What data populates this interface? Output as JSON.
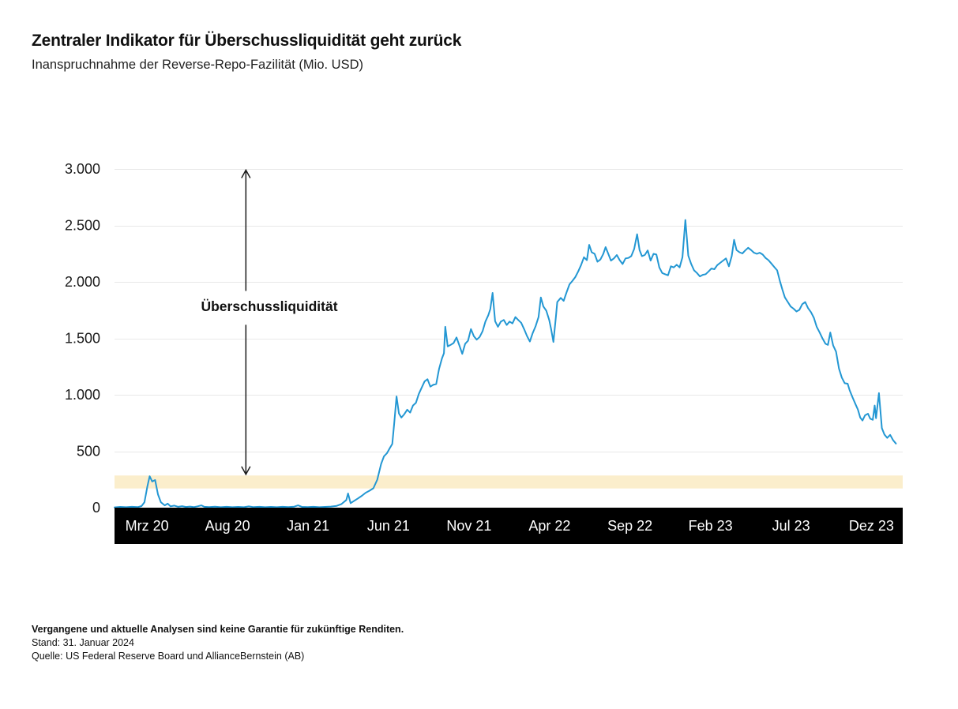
{
  "header": {
    "title": "Zentraler Indikator für Überschussliquidität geht zurück",
    "subtitle": "Inanspruchnahme der Reverse-Repo-Fazilität (Mio. USD)"
  },
  "footer": {
    "disclaimer": "Vergangene und aktuelle Analysen sind keine Garantie für zukünftige Renditen.",
    "as_of": "Stand: 31. Januar 2024",
    "source": "Quelle: US Federal Reserve Board und AllianceBernstein (AB)"
  },
  "colors": {
    "line": "#2397d3",
    "band": "#FBEECC",
    "grid": "#e8e8e8",
    "axis_band": "#000000",
    "text": "#1a1a1a",
    "arrow": "#1a1a1a"
  },
  "chart_data": {
    "type": "line",
    "title": "Zentraler Indikator für Überschussliquidität geht zurück",
    "subtitle": "Inanspruchnahme der Reverse-Repo-Fazilität (Mio. USD)",
    "xlabel": "",
    "ylabel": "",
    "ylim": [
      0,
      3000
    ],
    "xlim": [
      2020.04,
      2024.12
    ],
    "grid": true,
    "legend": "none",
    "yticks": [
      {
        "value": 0,
        "label": "0"
      },
      {
        "value": 500,
        "label": "500"
      },
      {
        "value": 1000,
        "label": "1.000"
      },
      {
        "value": 1500,
        "label": "1.500"
      },
      {
        "value": 2000,
        "label": "2.000"
      },
      {
        "value": 2500,
        "label": "2.500"
      },
      {
        "value": 3000,
        "label": "3.000"
      }
    ],
    "xticks": [
      {
        "t": 2020.208,
        "label": "Mrz 20"
      },
      {
        "t": 2020.625,
        "label": "Aug 20"
      },
      {
        "t": 2021.042,
        "label": "Jan 21"
      },
      {
        "t": 2021.458,
        "label": "Jun 21"
      },
      {
        "t": 2021.875,
        "label": "Nov 21"
      },
      {
        "t": 2022.292,
        "label": "Apr 22"
      },
      {
        "t": 2022.708,
        "label": "Sep 22"
      },
      {
        "t": 2023.125,
        "label": "Feb 23"
      },
      {
        "t": 2023.542,
        "label": "Jul 23"
      },
      {
        "t": 2023.958,
        "label": "Dez 23"
      }
    ],
    "band": {
      "value_range": [
        170,
        285
      ],
      "color": "#FBEECC"
    },
    "annotation": {
      "label": "Überschussliquidität",
      "arrow_t": 2020.72,
      "arrow_value_range": [
        295,
        2990
      ],
      "label_gap_values": [
        1620,
        1920
      ]
    },
    "series": [
      {
        "name": "Inanspruchnahme der Reverse-Repo-Fazilität (Mio. USD)",
        "color": "#2397d3",
        "points": [
          [
            2020.04,
            3
          ],
          [
            2020.07,
            7
          ],
          [
            2020.1,
            4
          ],
          [
            2020.13,
            8
          ],
          [
            2020.16,
            5
          ],
          [
            2020.18,
            14
          ],
          [
            2020.195,
            48
          ],
          [
            2020.21,
            188
          ],
          [
            2020.222,
            278
          ],
          [
            2020.235,
            232
          ],
          [
            2020.25,
            245
          ],
          [
            2020.265,
            118
          ],
          [
            2020.28,
            48
          ],
          [
            2020.3,
            20
          ],
          [
            2020.315,
            36
          ],
          [
            2020.33,
            12
          ],
          [
            2020.35,
            18
          ],
          [
            2020.37,
            8
          ],
          [
            2020.39,
            13
          ],
          [
            2020.41,
            6
          ],
          [
            2020.43,
            10
          ],
          [
            2020.45,
            5
          ],
          [
            2020.47,
            12
          ],
          [
            2020.49,
            20
          ],
          [
            2020.505,
            8
          ],
          [
            2020.53,
            5
          ],
          [
            2020.56,
            9
          ],
          [
            2020.59,
            4
          ],
          [
            2020.62,
            8
          ],
          [
            2020.65,
            4
          ],
          [
            2020.68,
            7
          ],
          [
            2020.71,
            4
          ],
          [
            2020.735,
            12
          ],
          [
            2020.76,
            5
          ],
          [
            2020.79,
            8
          ],
          [
            2020.82,
            4
          ],
          [
            2020.85,
            7
          ],
          [
            2020.88,
            4
          ],
          [
            2020.91,
            8
          ],
          [
            2020.94,
            5
          ],
          [
            2020.97,
            9
          ],
          [
            2020.99,
            20
          ],
          [
            2021.01,
            7
          ],
          [
            2021.04,
            5
          ],
          [
            2021.07,
            8
          ],
          [
            2021.1,
            4
          ],
          [
            2021.13,
            7
          ],
          [
            2021.16,
            10
          ],
          [
            2021.19,
            16
          ],
          [
            2021.215,
            32
          ],
          [
            2021.24,
            68
          ],
          [
            2021.249,
            126
          ],
          [
            2021.262,
            40
          ],
          [
            2021.28,
            60
          ],
          [
            2021.3,
            82
          ],
          [
            2021.32,
            105
          ],
          [
            2021.34,
            132
          ],
          [
            2021.36,
            150
          ],
          [
            2021.38,
            172
          ],
          [
            2021.4,
            248
          ],
          [
            2021.42,
            388
          ],
          [
            2021.435,
            455
          ],
          [
            2021.45,
            482
          ],
          [
            2021.465,
            528
          ],
          [
            2021.478,
            565
          ],
          [
            2021.488,
            752
          ],
          [
            2021.5,
            985
          ],
          [
            2021.512,
            835
          ],
          [
            2021.525,
            798
          ],
          [
            2021.54,
            828
          ],
          [
            2021.555,
            868
          ],
          [
            2021.57,
            842
          ],
          [
            2021.585,
            905
          ],
          [
            2021.6,
            928
          ],
          [
            2021.615,
            1008
          ],
          [
            2021.63,
            1062
          ],
          [
            2021.645,
            1118
          ],
          [
            2021.66,
            1138
          ],
          [
            2021.675,
            1072
          ],
          [
            2021.69,
            1088
          ],
          [
            2021.705,
            1095
          ],
          [
            2021.72,
            1228
          ],
          [
            2021.735,
            1322
          ],
          [
            2021.745,
            1368
          ],
          [
            2021.752,
            1602
          ],
          [
            2021.765,
            1428
          ],
          [
            2021.78,
            1442
          ],
          [
            2021.795,
            1458
          ],
          [
            2021.81,
            1508
          ],
          [
            2021.825,
            1438
          ],
          [
            2021.84,
            1362
          ],
          [
            2021.855,
            1452
          ],
          [
            2021.87,
            1478
          ],
          [
            2021.885,
            1582
          ],
          [
            2021.9,
            1518
          ],
          [
            2021.915,
            1488
          ],
          [
            2021.93,
            1512
          ],
          [
            2021.945,
            1562
          ],
          [
            2021.96,
            1648
          ],
          [
            2021.975,
            1705
          ],
          [
            2021.985,
            1758
          ],
          [
            2021.997,
            1902
          ],
          [
            2022.01,
            1652
          ],
          [
            2022.025,
            1602
          ],
          [
            2022.04,
            1648
          ],
          [
            2022.055,
            1662
          ],
          [
            2022.07,
            1618
          ],
          [
            2022.085,
            1648
          ],
          [
            2022.1,
            1632
          ],
          [
            2022.115,
            1688
          ],
          [
            2022.13,
            1662
          ],
          [
            2022.145,
            1638
          ],
          [
            2022.16,
            1582
          ],
          [
            2022.175,
            1522
          ],
          [
            2022.19,
            1472
          ],
          [
            2022.205,
            1548
          ],
          [
            2022.22,
            1608
          ],
          [
            2022.235,
            1688
          ],
          [
            2022.247,
            1862
          ],
          [
            2022.26,
            1782
          ],
          [
            2022.275,
            1745
          ],
          [
            2022.29,
            1662
          ],
          [
            2022.3,
            1582
          ],
          [
            2022.312,
            1468
          ],
          [
            2022.325,
            1692
          ],
          [
            2022.332,
            1822
          ],
          [
            2022.35,
            1858
          ],
          [
            2022.365,
            1832
          ],
          [
            2022.38,
            1908
          ],
          [
            2022.395,
            1978
          ],
          [
            2022.41,
            2008
          ],
          [
            2022.425,
            2042
          ],
          [
            2022.44,
            2092
          ],
          [
            2022.455,
            2148
          ],
          [
            2022.47,
            2218
          ],
          [
            2022.485,
            2192
          ],
          [
            2022.497,
            2328
          ],
          [
            2022.51,
            2262
          ],
          [
            2022.525,
            2248
          ],
          [
            2022.54,
            2178
          ],
          [
            2022.555,
            2198
          ],
          [
            2022.57,
            2248
          ],
          [
            2022.582,
            2308
          ],
          [
            2022.595,
            2252
          ],
          [
            2022.61,
            2188
          ],
          [
            2022.625,
            2208
          ],
          [
            2022.64,
            2238
          ],
          [
            2022.655,
            2192
          ],
          [
            2022.67,
            2158
          ],
          [
            2022.685,
            2208
          ],
          [
            2022.7,
            2212
          ],
          [
            2022.715,
            2228
          ],
          [
            2022.73,
            2292
          ],
          [
            2022.745,
            2422
          ],
          [
            2022.758,
            2282
          ],
          [
            2022.77,
            2228
          ],
          [
            2022.785,
            2238
          ],
          [
            2022.8,
            2278
          ],
          [
            2022.815,
            2188
          ],
          [
            2022.83,
            2248
          ],
          [
            2022.845,
            2242
          ],
          [
            2022.86,
            2128
          ],
          [
            2022.875,
            2078
          ],
          [
            2022.89,
            2068
          ],
          [
            2022.905,
            2058
          ],
          [
            2022.92,
            2138
          ],
          [
            2022.935,
            2128
          ],
          [
            2022.95,
            2152
          ],
          [
            2022.965,
            2128
          ],
          [
            2022.98,
            2218
          ],
          [
            2022.995,
            2548
          ],
          [
            2023.01,
            2232
          ],
          [
            2023.025,
            2158
          ],
          [
            2023.04,
            2102
          ],
          [
            2023.055,
            2078
          ],
          [
            2023.07,
            2048
          ],
          [
            2023.085,
            2062
          ],
          [
            2023.1,
            2068
          ],
          [
            2023.115,
            2092
          ],
          [
            2023.13,
            2118
          ],
          [
            2023.145,
            2112
          ],
          [
            2023.16,
            2148
          ],
          [
            2023.175,
            2168
          ],
          [
            2023.19,
            2188
          ],
          [
            2023.205,
            2208
          ],
          [
            2023.22,
            2138
          ],
          [
            2023.235,
            2228
          ],
          [
            2023.247,
            2372
          ],
          [
            2023.26,
            2282
          ],
          [
            2023.275,
            2262
          ],
          [
            2023.29,
            2252
          ],
          [
            2023.305,
            2278
          ],
          [
            2023.32,
            2302
          ],
          [
            2023.335,
            2282
          ],
          [
            2023.35,
            2258
          ],
          [
            2023.365,
            2248
          ],
          [
            2023.38,
            2258
          ],
          [
            2023.395,
            2242
          ],
          [
            2023.41,
            2212
          ],
          [
            2023.425,
            2192
          ],
          [
            2023.44,
            2162
          ],
          [
            2023.455,
            2132
          ],
          [
            2023.47,
            2102
          ],
          [
            2023.485,
            2002
          ],
          [
            2023.497,
            1932
          ],
          [
            2023.51,
            1862
          ],
          [
            2023.525,
            1822
          ],
          [
            2023.54,
            1782
          ],
          [
            2023.555,
            1762
          ],
          [
            2023.57,
            1738
          ],
          [
            2023.585,
            1752
          ],
          [
            2023.6,
            1802
          ],
          [
            2023.615,
            1822
          ],
          [
            2023.63,
            1768
          ],
          [
            2023.645,
            1732
          ],
          [
            2023.66,
            1682
          ],
          [
            2023.675,
            1602
          ],
          [
            2023.69,
            1552
          ],
          [
            2023.705,
            1498
          ],
          [
            2023.72,
            1452
          ],
          [
            2023.733,
            1442
          ],
          [
            2023.745,
            1552
          ],
          [
            2023.76,
            1438
          ],
          [
            2023.775,
            1382
          ],
          [
            2023.79,
            1232
          ],
          [
            2023.805,
            1152
          ],
          [
            2023.82,
            1102
          ],
          [
            2023.835,
            1098
          ],
          [
            2023.845,
            1042
          ],
          [
            2023.86,
            978
          ],
          [
            2023.875,
            918
          ],
          [
            2023.888,
            868
          ],
          [
            2023.9,
            798
          ],
          [
            2023.912,
            772
          ],
          [
            2023.925,
            818
          ],
          [
            2023.94,
            832
          ],
          [
            2023.952,
            788
          ],
          [
            2023.965,
            778
          ],
          [
            2023.975,
            905
          ],
          [
            2023.982,
            792
          ],
          [
            2023.997,
            1015
          ],
          [
            2024.012,
            705
          ],
          [
            2024.025,
            648
          ],
          [
            2024.04,
            618
          ],
          [
            2024.055,
            645
          ],
          [
            2024.07,
            598
          ],
          [
            2024.085,
            568
          ]
        ]
      }
    ]
  }
}
